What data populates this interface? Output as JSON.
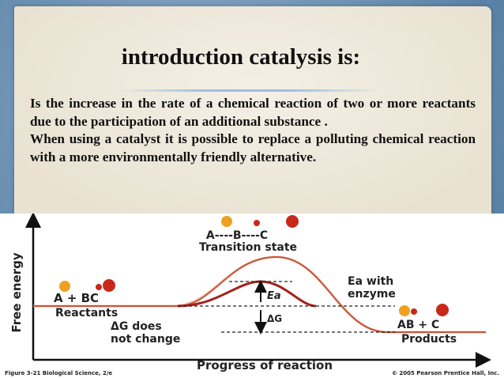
{
  "slide": {
    "title": "introduction catalysis is:",
    "paragraphs": [
      "Is the increase in the rate of a chemical reaction of two or more reactants due to the participation of an additional substance .",
      "When using a catalyst it is possible to replace a polluting chemical reaction with a more environmentally friendly alternative."
    ]
  },
  "figure": {
    "transition_formula": "A----B----C",
    "transition_label": "Transition state",
    "y_axis_label": "Free energy",
    "reactants_formula": "A + BC",
    "reactants_label": "Reactants",
    "delta_g_note": [
      "ΔG does",
      "not change"
    ],
    "ea_enzyme_note": [
      "Ea with",
      "enzyme"
    ],
    "ea_label": "Ea",
    "delta_g_label": "ΔG",
    "products_formula": "AB + C",
    "products_label": "Products",
    "x_axis_label": "Progress of reaction",
    "caption": "Figure 3-21 Biological Science, 2/e",
    "credit": "© 2005 Pearson Prentice Hall, Inc."
  }
}
